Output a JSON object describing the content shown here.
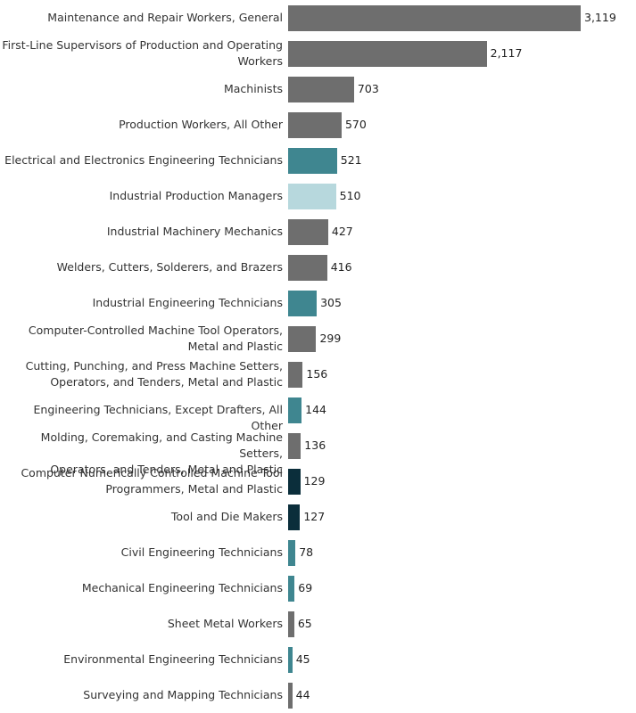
{
  "chart_data": {
    "type": "bar",
    "orientation": "horizontal",
    "categories": [
      "Maintenance and Repair Workers, General",
      "First-Line Supervisors of Production and Operating Workers",
      "Machinists",
      "Production Workers, All Other",
      "Electrical and Electronics Engineering Technicians",
      "Industrial Production Managers",
      "Industrial Machinery Mechanics",
      "Welders, Cutters, Solderers, and Brazers",
      "Industrial Engineering Technicians",
      "Computer-Controlled Machine Tool Operators, Metal and Plastic",
      "Cutting, Punching, and Press Machine Setters, Operators, and Tenders, Metal and Plastic",
      "Engineering Technicians, Except Drafters, All Other",
      "Molding, Coremaking, and Casting Machine Setters, Operators, and Tenders, Metal and Plastic",
      "Computer Numerically Controlled Machine Tool Programmers, Metal and Plastic",
      "Tool and Die Makers",
      "Civil Engineering Technicians",
      "Mechanical Engineering Technicians",
      "Sheet Metal Workers",
      "Environmental Engineering Technicians",
      "Surveying and Mapping Technicians"
    ],
    "label_lines": [
      [
        "Maintenance and Repair Workers, General"
      ],
      [
        "First-Line Supervisors of Production and Operating",
        "Workers"
      ],
      [
        "Machinists"
      ],
      [
        "Production Workers, All Other"
      ],
      [
        "Electrical and Electronics Engineering Technicians"
      ],
      [
        "Industrial Production Managers"
      ],
      [
        "Industrial Machinery Mechanics"
      ],
      [
        "Welders, Cutters, Solderers, and Brazers"
      ],
      [
        "Industrial Engineering Technicians"
      ],
      [
        "Computer-Controlled Machine Tool Operators,",
        "Metal and Plastic"
      ],
      [
        "Cutting, Punching, and Press Machine Setters,",
        "Operators, and Tenders, Metal and Plastic"
      ],
      [
        "Engineering Technicians, Except Drafters, All Other"
      ],
      [
        "Molding, Coremaking, and Casting Machine Setters,",
        "Operators, and Tenders, Metal and Plastic"
      ],
      [
        "Computer Numerically Controlled Machine Tool",
        "Programmers, Metal and Plastic"
      ],
      [
        "Tool and Die Makers"
      ],
      [
        "Civil Engineering Technicians"
      ],
      [
        "Mechanical Engineering Technicians"
      ],
      [
        "Sheet Metal Workers"
      ],
      [
        "Environmental Engineering Technicians"
      ],
      [
        "Surveying and Mapping Technicians"
      ]
    ],
    "values": [
      3119,
      2117,
      703,
      570,
      521,
      510,
      427,
      416,
      305,
      299,
      156,
      144,
      136,
      129,
      127,
      78,
      69,
      65,
      45,
      44
    ],
    "value_labels": [
      "3,119",
      "2,117",
      "703",
      "570",
      "521",
      "510",
      "427",
      "416",
      "305",
      "299",
      "156",
      "144",
      "136",
      "129",
      "127",
      "78",
      "69",
      "65",
      "45",
      "44"
    ],
    "colors": [
      "#6e6e6e",
      "#6e6e6e",
      "#6e6e6e",
      "#6e6e6e",
      "#3f8690",
      "#b7d8dd",
      "#6e6e6e",
      "#6e6e6e",
      "#3f8690",
      "#6e6e6e",
      "#6e6e6e",
      "#3f8690",
      "#6e6e6e",
      "#0b2e3b",
      "#0b2e3b",
      "#3f8690",
      "#3f8690",
      "#6e6e6e",
      "#3f8690",
      "#6e6e6e"
    ],
    "xlim": [
      0,
      3119
    ],
    "title": "",
    "xlabel": "",
    "ylabel": "",
    "grid": false,
    "legend": "none"
  }
}
